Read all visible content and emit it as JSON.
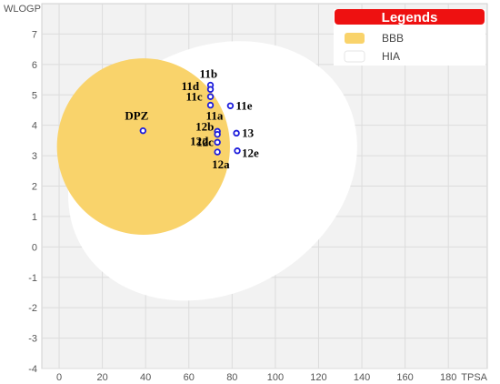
{
  "chart_data": {
    "type": "scatter",
    "xlabel": "TPSA",
    "ylabel": "WLOGP",
    "xlim": [
      -8,
      198
    ],
    "ylim": [
      -4,
      8
    ],
    "x_ticks": [
      0,
      20,
      40,
      60,
      80,
      100,
      120,
      140,
      160,
      180
    ],
    "y_ticks": [
      -4,
      -3,
      -2,
      -1,
      0,
      1,
      2,
      3,
      4,
      5,
      6,
      7
    ],
    "grid": true,
    "legend": {
      "title": "Legends",
      "placement": "top-right",
      "entries": [
        {
          "name": "BBB",
          "color": "#f9d36b"
        },
        {
          "name": "HIA",
          "color": "#ffffff"
        }
      ]
    },
    "regions": [
      {
        "name": "HIA",
        "cx": 71,
        "cy": 2.5,
        "rx": 70,
        "ry": 4.0,
        "rotation_deg": -30,
        "color": "#ffffff"
      },
      {
        "name": "BBB",
        "cx": 39,
        "cy": 3.3,
        "rx": 40,
        "ry": 2.9,
        "rotation_deg": 0,
        "color": "#f9d36b"
      }
    ],
    "points": [
      {
        "label": "DPZ",
        "x": 38.8,
        "y": 3.82
      },
      {
        "label": "11b",
        "x": 70.0,
        "y": 5.32
      },
      {
        "label": "11d",
        "x": 70.0,
        "y": 5.18
      },
      {
        "label": "11c",
        "x": 70.0,
        "y": 4.94
      },
      {
        "label": "11a",
        "x": 70.0,
        "y": 4.66
      },
      {
        "label": "11e",
        "x": 79.2,
        "y": 4.64
      },
      {
        "label": "12b",
        "x": 73.2,
        "y": 3.8
      },
      {
        "label": "12d",
        "x": 73.2,
        "y": 3.7
      },
      {
        "label": "13",
        "x": 82.0,
        "y": 3.74
      },
      {
        "label": "12c",
        "x": 73.2,
        "y": 3.44
      },
      {
        "label": "12e",
        "x": 82.4,
        "y": 3.16
      },
      {
        "label": "12a",
        "x": 73.2,
        "y": 3.12
      }
    ],
    "colors": {
      "plot_bg": "#f2f2f2",
      "grid": "#dcdcdc",
      "point_stroke": "#1a1adb",
      "legend_header": "#ee1111"
    }
  }
}
